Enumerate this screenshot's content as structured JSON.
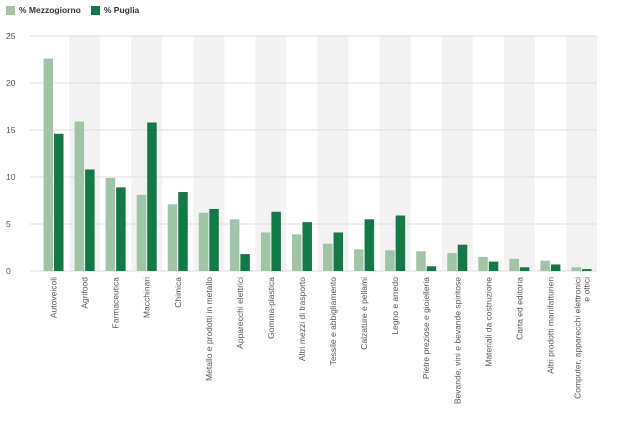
{
  "colors": {
    "mezzogiorno": "#9fc4a6",
    "puglia": "#127a47",
    "band": "#f2f2f2",
    "grid": "#dddddd",
    "text": "#555555"
  },
  "chart_data": {
    "type": "bar",
    "title": "",
    "xlabel": "",
    "ylabel": "",
    "ylim": [
      0,
      25
    ],
    "yticks": [
      0,
      5,
      10,
      15,
      20,
      25
    ],
    "legend_position": "top-left",
    "grid": true,
    "categories": [
      "Autoveicoli",
      "Agrifood",
      "Farmaceutica",
      "Macchinari",
      "Chimica",
      "Metallo e prodotti in metallo",
      "Apparecchi elettrici",
      "Gomma-plastica",
      "Altri mezzi di trasporto",
      "Tessile e abbigliamento",
      "Calzature e pellami",
      "Legno e arredo",
      "Pietre preziose e gioielleria",
      "Bevande, vini e bevande spiritose",
      "Materiali da costruzione",
      "Carta ed editoria",
      "Altri prodotti manifatturieri",
      "Computer, apparecchi elettronici e ottici"
    ],
    "series": [
      {
        "name": "% Mezzogiorno",
        "values": [
          22.6,
          15.9,
          9.9,
          8.1,
          7.1,
          6.2,
          5.5,
          4.1,
          3.9,
          2.9,
          2.3,
          2.2,
          2.1,
          1.9,
          1.5,
          1.3,
          1.1,
          0.4
        ]
      },
      {
        "name": "% Puglia",
        "values": [
          14.6,
          10.8,
          8.9,
          15.8,
          8.4,
          6.6,
          1.8,
          6.3,
          5.2,
          4.1,
          5.5,
          5.9,
          0.5,
          2.8,
          1.0,
          0.4,
          0.7,
          0.2
        ]
      }
    ]
  }
}
